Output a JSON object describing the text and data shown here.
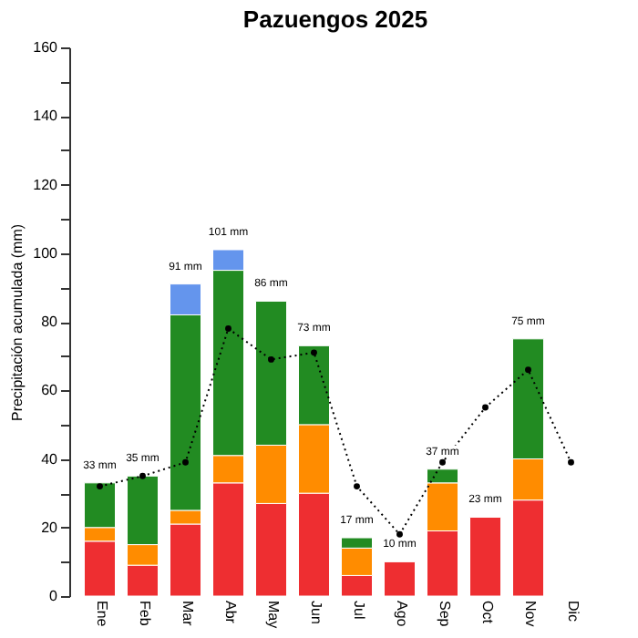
{
  "chart_data": {
    "type": "bar",
    "title": "Pazuengos 2025",
    "ylabel": "Precipitación acumulada (mm)",
    "categories": [
      "Ene",
      "Feb",
      "Mar",
      "Abr",
      "May",
      "Jun",
      "Jul",
      "Ago",
      "Sep",
      "Oct",
      "Nov",
      "Dic"
    ],
    "stacked": true,
    "series": [
      {
        "color": "#ee2e31",
        "values": [
          16,
          9,
          21,
          33,
          27,
          30,
          6,
          10,
          19,
          23,
          28,
          null
        ]
      },
      {
        "color": "#ff8c00",
        "values": [
          4,
          6,
          4,
          8,
          17,
          20,
          8,
          null,
          14,
          null,
          12,
          null
        ]
      },
      {
        "color": "#228b22",
        "values": [
          13,
          20,
          57,
          54,
          42,
          23,
          3,
          null,
          4,
          null,
          35,
          null
        ]
      },
      {
        "color": "#6495ed",
        "values": [
          null,
          null,
          9,
          6,
          null,
          null,
          null,
          null,
          null,
          null,
          null,
          null
        ]
      },
      {
        "type": "line",
        "color": "#000000",
        "marker": "circle",
        "line_style": "dotted",
        "values": [
          32,
          35,
          39,
          78,
          69,
          71,
          32,
          18,
          39,
          55,
          66,
          39
        ]
      }
    ],
    "totals": [
      "33 mm",
      "35 mm",
      "91 mm",
      "101 mm",
      "86 mm",
      "73 mm",
      "17 mm",
      "10 mm",
      "37 mm",
      "23 mm",
      "75 mm",
      null
    ],
    "ylim": [
      0,
      160
    ],
    "yticks": [
      0,
      {
        "value": 10,
        "label": null
      },
      20,
      {
        "value": 30,
        "label": null
      },
      40,
      {
        "value": 50,
        "label": null
      },
      60,
      {
        "value": 70,
        "label": null
      },
      80,
      {
        "value": 90,
        "label": null
      },
      100,
      {
        "value": 110,
        "label": null
      },
      120,
      {
        "value": 130,
        "label": null
      },
      140,
      {
        "value": 150,
        "label": null
      },
      160
    ],
    "grid": false
  }
}
